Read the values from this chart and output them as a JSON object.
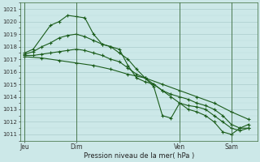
{
  "title": "Pression niveau de la mer( hPa )",
  "bg_color": "#cce8e8",
  "grid_major_color": "#aacccc",
  "grid_minor_color": "#bbdddd",
  "line_color": "#1a5c1a",
  "ylim": [
    1010.5,
    1021.5
  ],
  "yticks": [
    1011,
    1012,
    1013,
    1014,
    1015,
    1016,
    1017,
    1018,
    1019,
    1020,
    1021
  ],
  "xtick_labels": [
    "Jeu",
    "Dim",
    "Ven",
    "Sam"
  ],
  "xtick_positions": [
    0,
    6,
    18,
    24
  ],
  "vline_positions": [
    0,
    6,
    18,
    24
  ],
  "xlim": [
    -0.5,
    27
  ],
  "s1_x": [
    0,
    1,
    3,
    4,
    5,
    6,
    7,
    8,
    9,
    10,
    11,
    12,
    13,
    14,
    15,
    16,
    17,
    18,
    19,
    20,
    21,
    22,
    23,
    24,
    25,
    26
  ],
  "s1_y": [
    1017.5,
    1017.8,
    1019.7,
    1020.0,
    1020.5,
    1020.4,
    1020.3,
    1019.0,
    1018.2,
    1018.0,
    1017.5,
    1017.0,
    1016.2,
    1015.5,
    1014.8,
    1012.5,
    1012.3,
    1013.5,
    1013.3,
    1013.2,
    1013.0,
    1012.5,
    1012.0,
    1011.5,
    1011.3,
    1011.5
  ],
  "s2_x": [
    0,
    1,
    2,
    3,
    4,
    5,
    6,
    7,
    8,
    9,
    10,
    11,
    12,
    13,
    14,
    15,
    16,
    17,
    18,
    19,
    20,
    21,
    22,
    23,
    24,
    25,
    26
  ],
  "s2_y": [
    1017.4,
    1017.6,
    1018.0,
    1018.3,
    1018.7,
    1018.9,
    1019.0,
    1018.8,
    1018.5,
    1018.2,
    1018.0,
    1017.8,
    1016.5,
    1015.5,
    1015.2,
    1015.0,
    1014.5,
    1014.2,
    1014.0,
    1013.8,
    1013.5,
    1013.3,
    1013.0,
    1012.5,
    1011.8,
    1011.5,
    1011.5
  ],
  "s3_x": [
    0,
    1,
    2,
    3,
    4,
    5,
    6,
    7,
    8,
    9,
    10,
    11,
    12,
    13,
    14,
    15,
    16,
    17,
    18,
    19,
    20,
    21,
    22,
    23,
    24,
    25,
    26
  ],
  "s3_y": [
    1017.3,
    1017.3,
    1017.4,
    1017.5,
    1017.6,
    1017.7,
    1017.8,
    1017.7,
    1017.5,
    1017.3,
    1017.0,
    1016.8,
    1016.3,
    1015.8,
    1015.5,
    1015.0,
    1014.5,
    1014.0,
    1013.5,
    1013.0,
    1012.8,
    1012.5,
    1012.0,
    1011.2,
    1011.0,
    1011.5,
    1011.8
  ],
  "s4_x": [
    0,
    2,
    4,
    6,
    8,
    10,
    12,
    14,
    16,
    18,
    20,
    22,
    24,
    26
  ],
  "s4_y": [
    1017.2,
    1017.1,
    1016.9,
    1016.7,
    1016.5,
    1016.2,
    1015.8,
    1015.5,
    1015.0,
    1014.5,
    1014.0,
    1013.5,
    1012.8,
    1012.2
  ]
}
